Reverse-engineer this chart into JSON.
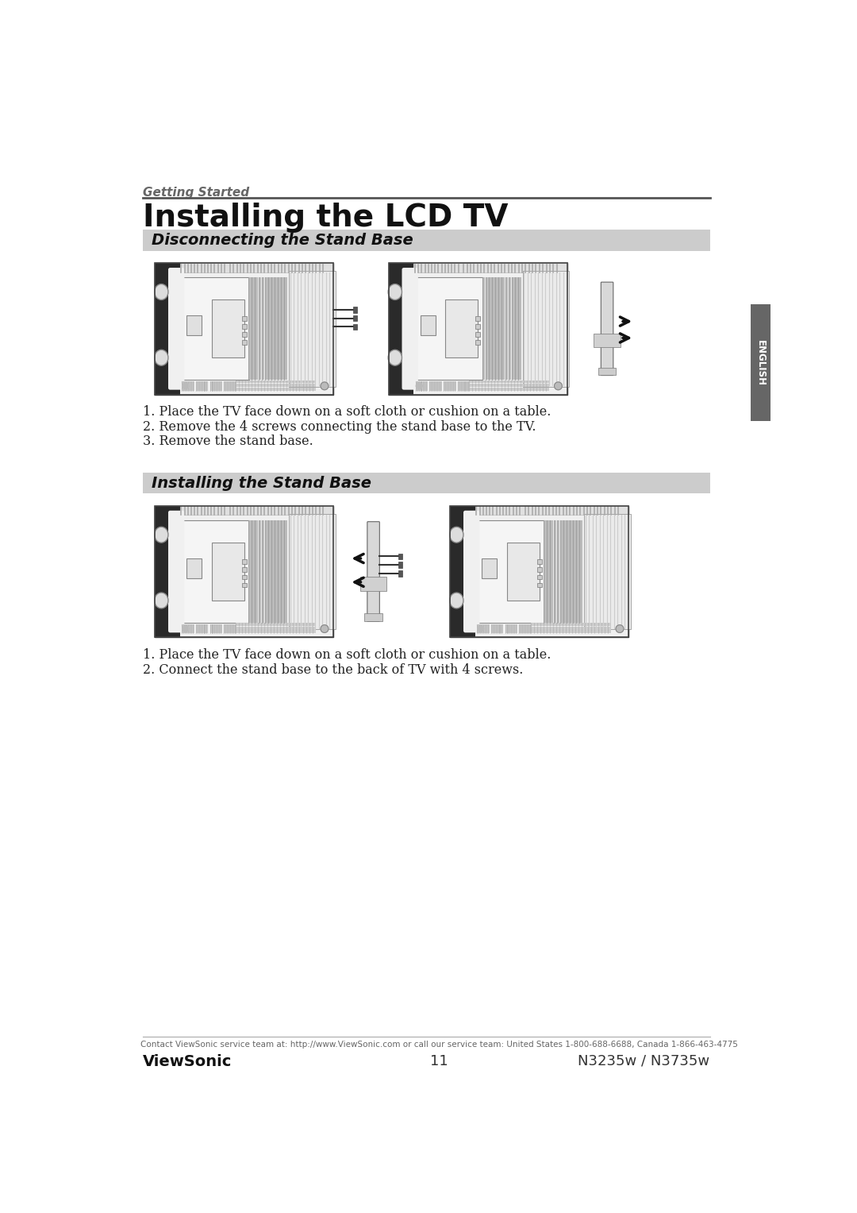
{
  "page_bg": "#ffffff",
  "top_section_label": "Getting Started",
  "top_section_label_color": "#666666",
  "title": "Installing the LCD TV",
  "section1_header": "Disconnecting the Stand Base",
  "section1_header_bg": "#cccccc",
  "section1_steps": [
    "1. Place the TV face down on a soft cloth or cushion on a table.",
    "2. Remove the 4 screws connecting the stand base to the TV.",
    "3. Remove the stand base."
  ],
  "section2_header": "Installing the Stand Base",
  "section2_header_bg": "#cccccc",
  "section2_steps": [
    "1. Place the TV face down on a soft cloth or cushion on a table.",
    "2. Connect the stand base to the back of TV with 4 screws."
  ],
  "footer_contact": "Contact ViewSonic service team at: http://www.ViewSonic.com or call our service team: United States 1-800-688-6688, Canada 1-866-463-4775",
  "footer_left": "ViewSonic",
  "footer_center": "11",
  "footer_right": "N3235w / N3735w",
  "english_tab_color": "#666666",
  "english_tab_text": "ENGLISH",
  "divider_color": "#555555",
  "text_color": "#222222"
}
